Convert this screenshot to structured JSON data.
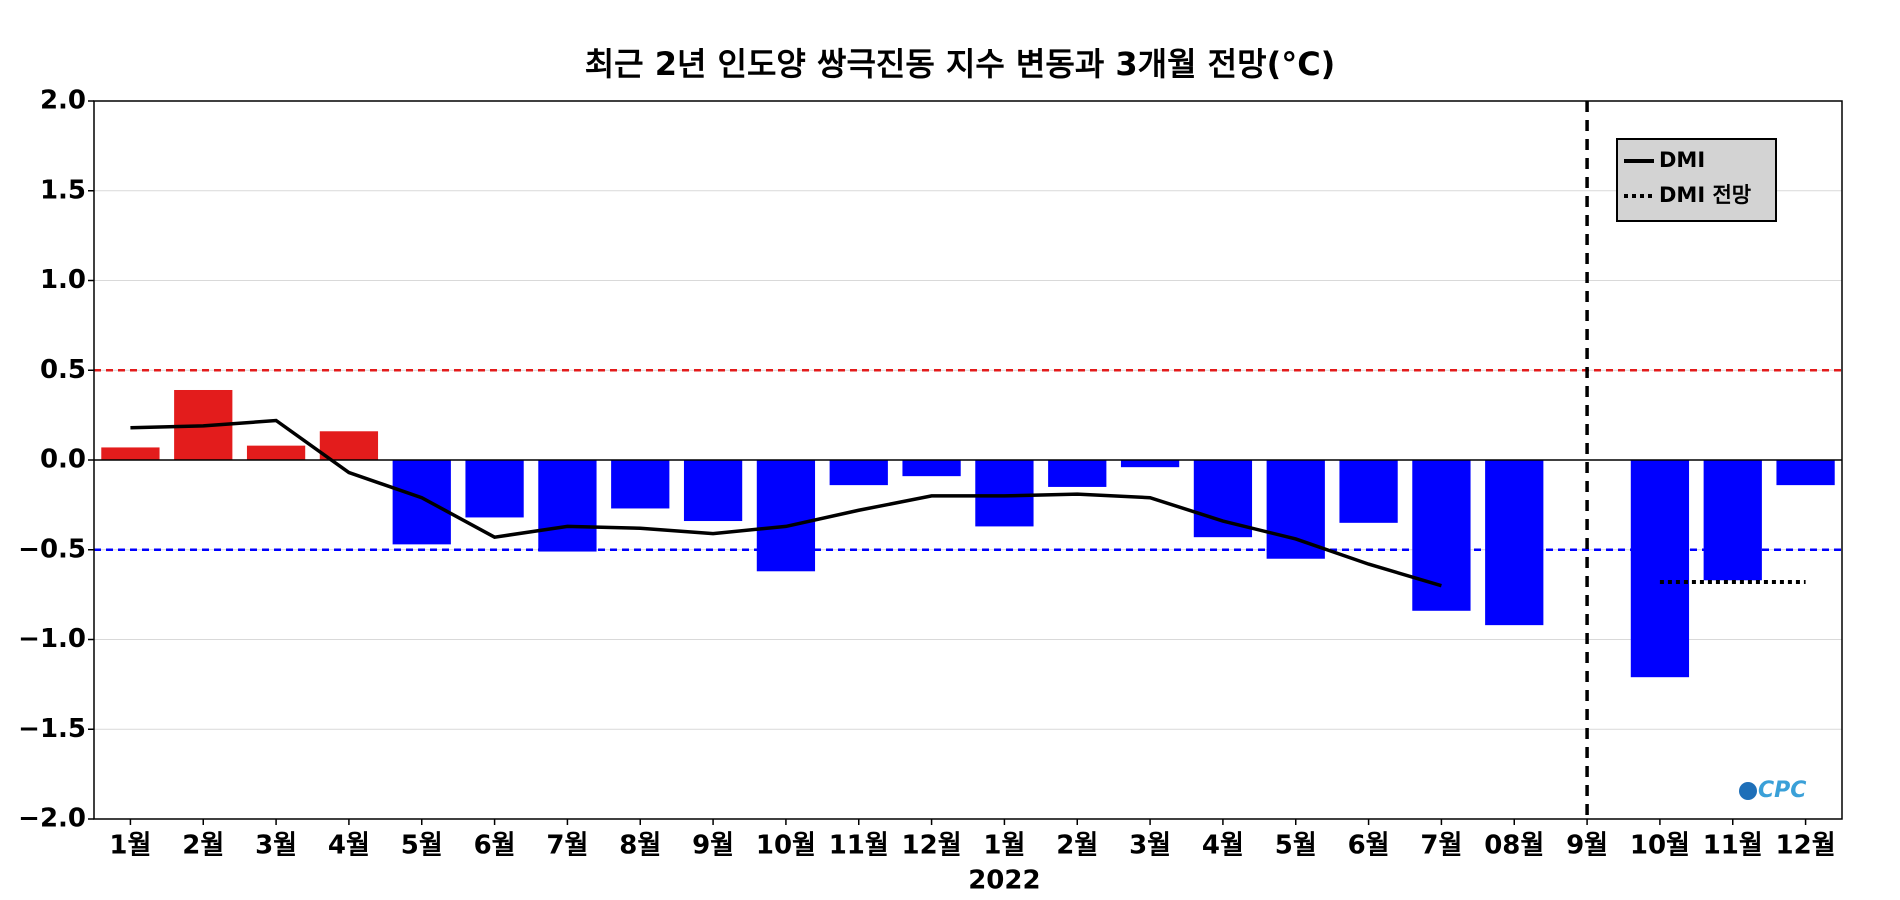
{
  "chart_data": {
    "type": "bar",
    "title": "최근 2년 인도양 쌍극진동 지수 변동과 3개월 전망(°C)",
    "x_label": "2022",
    "logo": "CPC",
    "categories": [
      "1월",
      "2월",
      "3월",
      "4월",
      "5월",
      "6월",
      "7월",
      "8월",
      "9월",
      "10월",
      "11월",
      "12월",
      "1월",
      "2월",
      "3월",
      "4월",
      "5월",
      "6월",
      "7월",
      "08월",
      "9월",
      "10월",
      "11월",
      "12월"
    ],
    "values": [
      0.07,
      0.39,
      0.08,
      0.16,
      -0.47,
      -0.32,
      -0.51,
      -0.27,
      -0.34,
      -0.62,
      -0.14,
      -0.09,
      -0.37,
      -0.15,
      -0.04,
      -0.43,
      -0.55,
      -0.35,
      -0.84,
      -0.92,
      null,
      -1.21,
      -0.67,
      -0.14
    ],
    "positive_color": "#e31c1c",
    "negative_color": "#0000ff",
    "series": [
      {
        "name": "DMI",
        "color": "#000000",
        "dash": "solid",
        "values": [
          0.18,
          0.19,
          0.22,
          -0.07,
          -0.21,
          -0.43,
          -0.37,
          -0.38,
          -0.41,
          -0.37,
          -0.28,
          -0.2,
          -0.2,
          -0.19,
          -0.21,
          -0.34,
          -0.44,
          -0.58,
          -0.7,
          null,
          null,
          null,
          null,
          null
        ]
      },
      {
        "name": "DMI 전망",
        "color": "#000000",
        "dash": "dotted",
        "values": [
          null,
          null,
          null,
          null,
          null,
          null,
          null,
          null,
          null,
          null,
          null,
          null,
          null,
          null,
          null,
          null,
          null,
          null,
          null,
          null,
          null,
          -0.68,
          -0.68,
          -0.68
        ]
      }
    ],
    "reference_lines": [
      {
        "value": 0.5,
        "color": "#e31c1c"
      },
      {
        "value": -0.5,
        "color": "#0000ff"
      }
    ],
    "vline_index": 20,
    "ylim": [
      -2,
      2
    ],
    "yticks": [
      {
        "value": -2,
        "label": "−2.0"
      },
      {
        "value": -1.5,
        "label": "−1.5"
      },
      {
        "value": -1,
        "label": "−1.0"
      },
      {
        "value": -0.5,
        "label": "−0.5"
      },
      {
        "value": 0,
        "label": "0.0"
      },
      {
        "value": 0.5,
        "label": "0.5"
      },
      {
        "value": 1,
        "label": "1.0"
      },
      {
        "value": 1.5,
        "label": "1.5"
      },
      {
        "value": 2,
        "label": "2.0"
      }
    ],
    "grid": true,
    "legend": "upper right"
  }
}
